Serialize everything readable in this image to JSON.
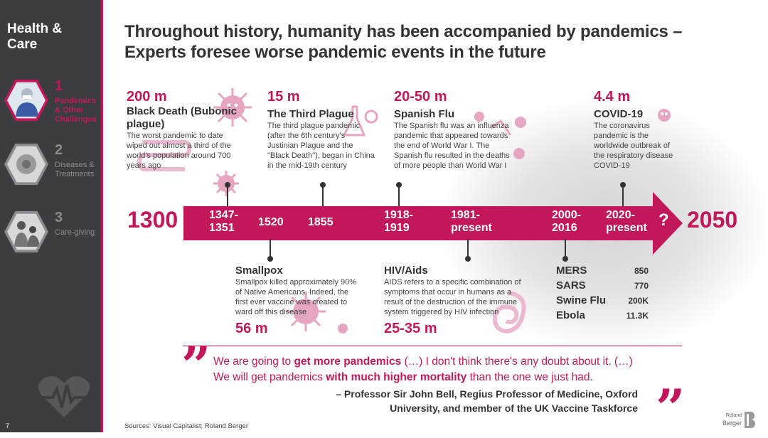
{
  "sidebar": {
    "title": "Health & Care",
    "items": [
      {
        "num": "1",
        "label": "Pandemics & Other Challenges"
      },
      {
        "num": "2",
        "label": "Diseases & Treatments"
      },
      {
        "num": "3",
        "label": "Care-giving"
      }
    ],
    "page_number": "7"
  },
  "title": "Throughout history, humanity has been accompanied by pandemics – Experts foresee worse pandemic events in the future",
  "timeline": {
    "start": "1300",
    "end": "2050",
    "unknown": "?",
    "years": [
      "1347-1351",
      "1520",
      "1855",
      "1918-1919",
      "1981-present",
      "2000-2016",
      "2020-present"
    ]
  },
  "events_top": [
    {
      "number": "200 m",
      "name": "Black Death (Bubonic plague)",
      "desc": "The worst pandemic to date wiped out almost a third of the world's population around 700 years ago"
    },
    {
      "number": "15 m",
      "name": "The Third Plague",
      "desc": "The third plague pandemic (after the 6th century's Justinian Plague and the \"Black Death\"), began in China in the mid-19th century"
    },
    {
      "number": "20-50 m",
      "name": "Spanish Flu",
      "desc": "The Spanish flu was an influenza pandemic that appeared towards the end of World War I.  The Spanish flu resulted in the deaths of more people than World War I"
    },
    {
      "number": "4.4 m",
      "name": "COVID-19",
      "desc": "The coronavirus pandemic is the worldwide outbreak of the respiratory disease COVID-19"
    }
  ],
  "events_bottom": [
    {
      "number": "56 m",
      "name": "Smallpox",
      "desc": "Smallpox killed approximately 90% of Native Americans. Indeed, the first ever vaccine was created to ward off this disease"
    },
    {
      "number": "25-35 m",
      "name": "HIV/Aids",
      "desc": "AIDS refers to a specific combination of symptoms that occur in humans as a result of the destruction of the immune system triggered by HIV infection"
    }
  ],
  "recent": [
    {
      "name": "MERS",
      "value": "850"
    },
    {
      "name": "SARS",
      "value": "770"
    },
    {
      "name": "Swine Flu",
      "value": "200K"
    },
    {
      "name": "Ebola",
      "value": "11.3K"
    }
  ],
  "quote": {
    "p1": "We are going to ",
    "b1": "get more pandemics",
    "p2": " (…) I don't think there's any doubt about it. (…) We will get pandemics ",
    "b2": "with much higher mortality",
    "p3": " than the one we just had.",
    "author": "– Professor Sir John Bell, Regius Professor of Medicine, Oxford University, and member of the UK Vaccine Taskforce"
  },
  "sources": "Sources: Visual Capitalist; Roland Berger",
  "logo": {
    "line1": "Roland",
    "line2": "Berger"
  },
  "colors": {
    "accent": "#c2185b",
    "sidebar": "#3b3d40",
    "text": "#333333"
  }
}
